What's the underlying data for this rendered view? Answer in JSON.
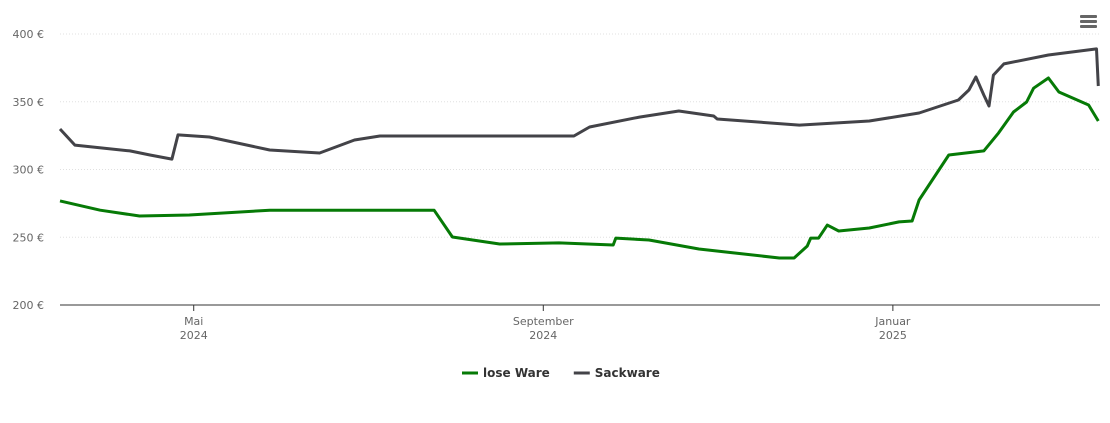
{
  "chart_data": {
    "type": "line",
    "xlim": [
      2.47,
      14.37
    ],
    "xticks": [
      {
        "value": 4,
        "label": "Mai 2024"
      },
      {
        "value": 8,
        "label": "September 2024"
      },
      {
        "value": 12,
        "label": "Januar 2025"
      }
    ],
    "ylim": [
      200,
      400
    ],
    "yticks": [
      {
        "value": 200,
        "label": "200 €"
      },
      {
        "value": 250,
        "label": "250 €"
      },
      {
        "value": 300,
        "label": "300 €"
      },
      {
        "value": 350,
        "label": "350 €"
      },
      {
        "value": 400,
        "label": "400 €"
      }
    ],
    "grid": true,
    "legend": "bottom",
    "series": [
      {
        "name": "lose Ware",
        "color": "#067a06",
        "x": [
          2.47,
          2.93,
          3.38,
          3.95,
          4.87,
          6.75,
          6.96,
          7.5,
          8.18,
          8.8,
          8.83,
          9.21,
          9.78,
          10.7,
          10.87,
          11.02,
          11.06,
          11.15,
          11.25,
          11.38,
          11.73,
          12.07,
          12.22,
          12.3,
          12.64,
          13.04,
          13.21,
          13.38,
          13.53,
          13.61,
          13.78,
          13.9,
          14.24,
          14.35
        ],
        "values": [
          276.8,
          270,
          265.7,
          266.4,
          270,
          270,
          250.2,
          245,
          245.8,
          244.3,
          249.4,
          248,
          241.3,
          234.7,
          234.7,
          243.5,
          249.4,
          249.4,
          259,
          254.6,
          256.8,
          261.3,
          262,
          277.5,
          310.7,
          313.7,
          327,
          342.4,
          349.8,
          360,
          367.5,
          357.2,
          347.6,
          335.8
        ]
      },
      {
        "name": "Sackware",
        "color": "#434348",
        "x": [
          2.47,
          2.64,
          3.27,
          3.5,
          3.75,
          3.82,
          4.18,
          4.87,
          5.44,
          5.84,
          6.13,
          8.35,
          8.53,
          9.1,
          9.55,
          9.95,
          9.99,
          10.93,
          11.73,
          12.3,
          12.75,
          12.87,
          12.95,
          13.04,
          13.1,
          13.15,
          13.27,
          13.78,
          14.33,
          14.35
        ],
        "values": [
          329.9,
          318,
          313.7,
          310.7,
          307.7,
          325.5,
          324,
          314.4,
          312.2,
          321.8,
          324.7,
          324.7,
          331.4,
          338.7,
          343.2,
          339.5,
          337.3,
          332.8,
          335.8,
          341.7,
          351.3,
          358.7,
          368.3,
          355,
          346.9,
          369.7,
          377.9,
          384.5,
          389,
          361.6
        ]
      }
    ]
  }
}
